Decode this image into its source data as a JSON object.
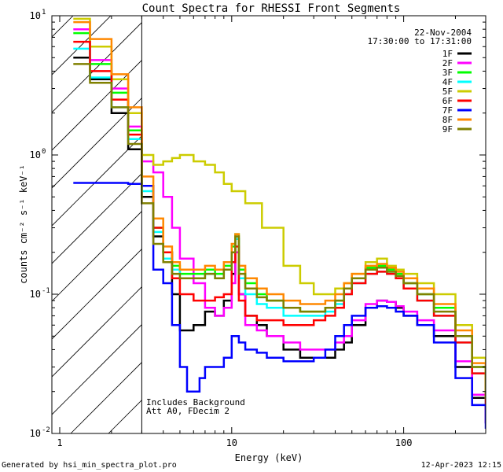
{
  "chart_data": {
    "type": "line",
    "title": "Count Spectra for RHESSI Front Segments",
    "xlabel": "Energy (keV)",
    "ylabel": "counts cm⁻² s⁻¹ keV⁻¹",
    "xscale": "log",
    "yscale": "log",
    "xlim": [
      0.9,
      300
    ],
    "ylim": [
      0.01,
      10
    ],
    "x_ticks": [
      {
        "value": 1,
        "label": "1"
      },
      {
        "value": 10,
        "label": "10"
      },
      {
        "value": 100,
        "label": "100"
      }
    ],
    "y_ticks": [
      {
        "value": 0.01,
        "base": "10",
        "exp": "-2"
      },
      {
        "value": 0.1,
        "base": "10",
        "exp": "-1"
      },
      {
        "value": 1,
        "base": "10",
        "exp": "0"
      },
      {
        "value": 10,
        "base": "10",
        "exp": "1"
      }
    ],
    "date": "22-Nov-2004",
    "time_range": "17:30:00 to 17:31:00",
    "annotations": [
      "Includes Background",
      "Att A0, FDecim 2"
    ],
    "hatched_region_below_keV": 3,
    "legend_position": "top-right",
    "series": [
      {
        "name": "1F",
        "color": "#000000",
        "x": [
          1.2,
          1.5,
          2,
          2.5,
          3,
          3.5,
          4,
          4.5,
          5,
          6,
          7,
          8,
          9,
          10,
          10.5,
          11,
          12,
          14,
          16,
          20,
          25,
          30,
          35,
          40,
          45,
          50,
          60,
          70,
          80,
          90,
          100,
          120,
          150,
          200,
          250,
          300
        ],
        "values": [
          5.0,
          3.5,
          2.0,
          1.1,
          0.5,
          0.26,
          0.2,
          0.1,
          0.055,
          0.06,
          0.075,
          0.07,
          0.09,
          0.14,
          0.25,
          0.1,
          0.07,
          0.06,
          0.05,
          0.04,
          0.035,
          0.035,
          0.035,
          0.04,
          0.045,
          0.06,
          0.08,
          0.09,
          0.088,
          0.08,
          0.07,
          0.06,
          0.05,
          0.03,
          0.018,
          0.012
        ]
      },
      {
        "name": "2F",
        "color": "#ff00ff",
        "x": [
          1.2,
          1.5,
          2,
          2.5,
          3,
          3.5,
          4,
          4.5,
          5,
          6,
          7,
          8,
          9,
          10,
          10.5,
          11,
          12,
          14,
          16,
          20,
          25,
          30,
          35,
          40,
          45,
          50,
          60,
          70,
          80,
          90,
          100,
          120,
          150,
          200,
          250,
          300
        ],
        "values": [
          8.0,
          4.8,
          3.0,
          1.6,
          0.9,
          0.75,
          0.5,
          0.3,
          0.18,
          0.12,
          0.08,
          0.07,
          0.08,
          0.12,
          0.2,
          0.1,
          0.06,
          0.055,
          0.05,
          0.045,
          0.04,
          0.04,
          0.04,
          0.045,
          0.05,
          0.065,
          0.085,
          0.09,
          0.088,
          0.082,
          0.075,
          0.065,
          0.055,
          0.033,
          0.019,
          0.012
        ]
      },
      {
        "name": "3F",
        "color": "#00ff00",
        "x": [
          1.2,
          1.5,
          2,
          2.5,
          3,
          3.5,
          4,
          4.5,
          5,
          6,
          7,
          8,
          9,
          10,
          10.5,
          11,
          12,
          14,
          16,
          20,
          25,
          30,
          35,
          40,
          45,
          50,
          60,
          70,
          80,
          90,
          100,
          120,
          150,
          200,
          250,
          300
        ],
        "values": [
          7.5,
          4.5,
          2.8,
          1.5,
          0.6,
          0.3,
          0.2,
          0.16,
          0.14,
          0.14,
          0.15,
          0.14,
          0.16,
          0.22,
          0.27,
          0.15,
          0.12,
          0.1,
          0.09,
          0.08,
          0.075,
          0.075,
          0.08,
          0.09,
          0.11,
          0.13,
          0.155,
          0.16,
          0.15,
          0.14,
          0.12,
          0.1,
          0.08,
          0.05,
          0.03,
          0.018
        ]
      },
      {
        "name": "4F",
        "color": "#00ffff",
        "x": [
          1.2,
          1.5,
          2,
          2.5,
          3,
          3.5,
          4,
          4.5,
          5,
          6,
          7,
          8,
          9,
          10,
          10.5,
          11,
          12,
          14,
          16,
          20,
          25,
          30,
          35,
          40,
          45,
          50,
          60,
          70,
          80,
          90,
          100,
          120,
          150,
          200,
          250,
          300
        ],
        "values": [
          5.8,
          3.6,
          2.2,
          1.3,
          0.55,
          0.28,
          0.18,
          0.15,
          0.13,
          0.13,
          0.14,
          0.13,
          0.15,
          0.2,
          0.25,
          0.13,
          0.1,
          0.085,
          0.08,
          0.07,
          0.07,
          0.07,
          0.075,
          0.085,
          0.1,
          0.12,
          0.14,
          0.145,
          0.14,
          0.13,
          0.11,
          0.09,
          0.07,
          0.045,
          0.027,
          0.016
        ]
      },
      {
        "name": "5F",
        "color": "#cccc00",
        "x": [
          1.2,
          1.5,
          2,
          2.5,
          3,
          3.5,
          4,
          4.5,
          5,
          6,
          7,
          8,
          9,
          10,
          12,
          15,
          20,
          25,
          30,
          35,
          40,
          45,
          50,
          60,
          70,
          80,
          90,
          100,
          120,
          150,
          200,
          250,
          300
        ],
        "values": [
          9.5,
          6.0,
          3.5,
          2.0,
          1.0,
          0.85,
          0.9,
          0.95,
          1.0,
          0.9,
          0.85,
          0.75,
          0.62,
          0.55,
          0.45,
          0.3,
          0.16,
          0.12,
          0.1,
          0.1,
          0.11,
          0.12,
          0.14,
          0.17,
          0.18,
          0.16,
          0.15,
          0.14,
          0.12,
          0.1,
          0.06,
          0.035,
          0.018
        ]
      },
      {
        "name": "6F",
        "color": "#ff0000",
        "x": [
          1.2,
          1.5,
          2,
          2.5,
          3,
          3.5,
          4,
          4.5,
          5,
          6,
          7,
          8,
          9,
          10,
          10.5,
          11,
          12,
          14,
          16,
          20,
          25,
          30,
          35,
          40,
          45,
          50,
          60,
          70,
          80,
          90,
          100,
          120,
          150,
          200,
          250,
          300
        ],
        "values": [
          6.5,
          4.0,
          2.5,
          1.4,
          0.6,
          0.3,
          0.2,
          0.13,
          0.1,
          0.09,
          0.09,
          0.095,
          0.1,
          0.17,
          0.22,
          0.09,
          0.07,
          0.065,
          0.065,
          0.06,
          0.06,
          0.065,
          0.07,
          0.08,
          0.1,
          0.12,
          0.14,
          0.145,
          0.14,
          0.13,
          0.11,
          0.09,
          0.07,
          0.045,
          0.027,
          0.015
        ]
      },
      {
        "name": "7F",
        "color": "#0000ff",
        "x": [
          1.2,
          1.5,
          2,
          2.5,
          3,
          3.5,
          4,
          4.5,
          5,
          5.5,
          6,
          6.5,
          7,
          8,
          9,
          10,
          11,
          12,
          14,
          16,
          20,
          25,
          30,
          35,
          40,
          45,
          50,
          60,
          70,
          80,
          90,
          100,
          120,
          150,
          200,
          250,
          300
        ],
        "values": [
          0.63,
          0.63,
          0.63,
          0.62,
          0.6,
          0.15,
          0.12,
          0.06,
          0.03,
          0.02,
          0.02,
          0.025,
          0.03,
          0.03,
          0.035,
          0.05,
          0.045,
          0.04,
          0.038,
          0.035,
          0.033,
          0.033,
          0.035,
          0.04,
          0.05,
          0.06,
          0.07,
          0.08,
          0.082,
          0.08,
          0.075,
          0.07,
          0.06,
          0.045,
          0.025,
          0.016,
          0.011
        ]
      },
      {
        "name": "8F",
        "color": "#ff8800",
        "x": [
          1.2,
          1.5,
          2,
          2.5,
          3,
          3.5,
          4,
          4.5,
          5,
          6,
          7,
          8,
          9,
          10,
          10.5,
          11,
          12,
          14,
          16,
          20,
          25,
          30,
          35,
          40,
          45,
          50,
          60,
          70,
          80,
          90,
          100,
          120,
          150,
          200,
          250,
          300
        ],
        "values": [
          9.0,
          6.8,
          3.8,
          2.2,
          0.7,
          0.35,
          0.22,
          0.17,
          0.15,
          0.15,
          0.16,
          0.15,
          0.17,
          0.23,
          0.27,
          0.16,
          0.13,
          0.11,
          0.1,
          0.09,
          0.085,
          0.085,
          0.09,
          0.1,
          0.12,
          0.14,
          0.16,
          0.165,
          0.155,
          0.145,
          0.13,
          0.11,
          0.085,
          0.055,
          0.032,
          0.02
        ]
      },
      {
        "name": "9F",
        "color": "#808000",
        "x": [
          1.2,
          1.5,
          2,
          2.5,
          3,
          3.5,
          4,
          4.5,
          5,
          6,
          7,
          8,
          9,
          10,
          10.5,
          11,
          12,
          14,
          16,
          20,
          25,
          30,
          35,
          40,
          45,
          50,
          60,
          70,
          80,
          90,
          100,
          120,
          150,
          200,
          250,
          300
        ],
        "values": [
          4.5,
          3.3,
          2.2,
          1.2,
          0.45,
          0.23,
          0.17,
          0.14,
          0.13,
          0.13,
          0.14,
          0.13,
          0.15,
          0.2,
          0.26,
          0.14,
          0.11,
          0.095,
          0.09,
          0.08,
          0.075,
          0.075,
          0.08,
          0.09,
          0.11,
          0.13,
          0.15,
          0.155,
          0.145,
          0.135,
          0.12,
          0.1,
          0.075,
          0.05,
          0.03,
          0.018
        ]
      }
    ]
  },
  "footer": {
    "generated_by": "Generated by hsi_min_spectra_plot.pro",
    "timestamp": "12-Apr-2023 12:15"
  }
}
